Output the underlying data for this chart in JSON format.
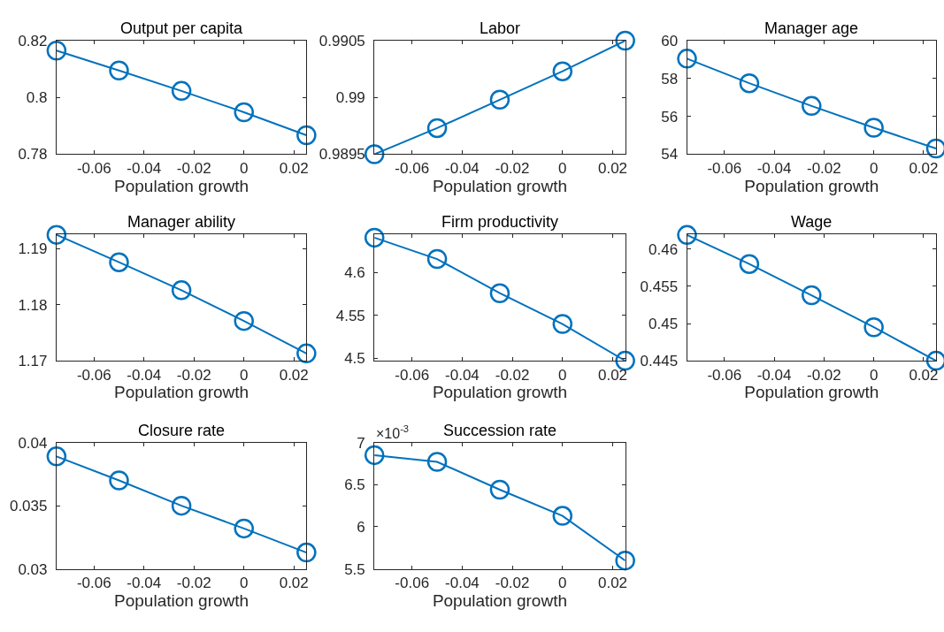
{
  "chart_data": [
    {
      "type": "line",
      "title": "Output per capita",
      "xlabel": "Population growth",
      "x": [
        -0.075,
        -0.05,
        -0.025,
        0,
        0.025
      ],
      "values": [
        0.8165,
        0.8095,
        0.8023,
        0.7948,
        0.7867
      ],
      "color": "#0072bd",
      "marker": "circle",
      "line_style": "solid",
      "xlim": [
        -0.075,
        0.025
      ],
      "xticks": [
        -0.06,
        -0.04,
        -0.02,
        0,
        0.02
      ],
      "ylim": [
        0.78,
        0.82
      ],
      "yticks": [
        0.78,
        0.8,
        0.82
      ]
    },
    {
      "type": "line",
      "title": "Labor",
      "xlabel": "Population growth",
      "x": [
        -0.075,
        -0.05,
        -0.025,
        0,
        0.025
      ],
      "values": [
        0.9895,
        0.98973,
        0.98998,
        0.99023,
        0.9905
      ],
      "color": "#0072bd",
      "marker": "circle",
      "line_style": "solid",
      "xlim": [
        -0.075,
        0.025
      ],
      "xticks": [
        -0.06,
        -0.04,
        -0.02,
        0,
        0.02
      ],
      "ylim": [
        0.9895,
        0.9905
      ],
      "yticks": [
        0.9895,
        0.99,
        0.9905
      ]
    },
    {
      "type": "line",
      "title": "Manager age",
      "xlabel": "Population growth",
      "x": [
        -0.075,
        -0.05,
        -0.025,
        0,
        0.025
      ],
      "values": [
        59.05,
        57.75,
        56.55,
        55.4,
        54.3
      ],
      "color": "#0072bd",
      "marker": "circle",
      "line_style": "solid",
      "xlim": [
        -0.075,
        0.025
      ],
      "xticks": [
        -0.06,
        -0.04,
        -0.02,
        0,
        0.02
      ],
      "ylim": [
        54,
        60
      ],
      "yticks": [
        54,
        56,
        58,
        60
      ]
    },
    {
      "type": "line",
      "title": "Manager ability",
      "xlabel": "Population growth",
      "x": [
        -0.075,
        -0.05,
        -0.025,
        0,
        0.025
      ],
      "values": [
        1.1925,
        1.1876,
        1.1826,
        1.1771,
        1.1713
      ],
      "color": "#0072bd",
      "marker": "circle",
      "line_style": "solid",
      "xlim": [
        -0.075,
        0.025
      ],
      "xticks": [
        -0.06,
        -0.04,
        -0.02,
        0,
        0.02
      ],
      "ylim": [
        1.17,
        1.1926
      ],
      "yticks": [
        1.17,
        1.18,
        1.19
      ]
    },
    {
      "type": "line",
      "title": "Firm productivity",
      "xlabel": "Population growth",
      "x": [
        -0.075,
        -0.05,
        -0.025,
        0,
        0.025
      ],
      "values": [
        4.641,
        4.616,
        4.576,
        4.54,
        4.497
      ],
      "color": "#0072bd",
      "marker": "circle",
      "line_style": "solid",
      "xlim": [
        -0.075,
        0.025
      ],
      "xticks": [
        -0.06,
        -0.04,
        -0.02,
        0,
        0.02
      ],
      "ylim": [
        4.497,
        4.645
      ],
      "yticks": [
        4.5,
        4.55,
        4.6
      ]
    },
    {
      "type": "line",
      "title": "Wage",
      "xlabel": "Population growth",
      "x": [
        -0.075,
        -0.05,
        -0.025,
        0,
        0.025
      ],
      "values": [
        0.4619,
        0.458,
        0.4538,
        0.4495,
        0.445
      ],
      "color": "#0072bd",
      "marker": "circle",
      "line_style": "solid",
      "xlim": [
        -0.075,
        0.025
      ],
      "xticks": [
        -0.06,
        -0.04,
        -0.02,
        0,
        0.02
      ],
      "ylim": [
        0.445,
        0.462
      ],
      "yticks": [
        0.445,
        0.45,
        0.455,
        0.46
      ]
    },
    {
      "type": "line",
      "title": "Closure rate",
      "xlabel": "Population growth",
      "x": [
        -0.075,
        -0.05,
        -0.025,
        0,
        0.025
      ],
      "values": [
        0.0389,
        0.037,
        0.035,
        0.0332,
        0.0313
      ],
      "color": "#0072bd",
      "marker": "circle",
      "line_style": "solid",
      "xlim": [
        -0.075,
        0.025
      ],
      "xticks": [
        -0.06,
        -0.04,
        -0.02,
        0,
        0.02
      ],
      "ylim": [
        0.03,
        0.04
      ],
      "yticks": [
        0.03,
        0.035,
        0.04
      ]
    },
    {
      "type": "line",
      "title": "Succession rate",
      "xlabel": "Population growth",
      "annotations": [
        "×10$^{-3}$"
      ],
      "x": [
        -0.075,
        -0.05,
        -0.025,
        0,
        0.025
      ],
      "values": [
        6.85,
        6.77,
        6.44,
        6.13,
        5.6
      ],
      "color": "#0072bd",
      "marker": "circle",
      "line_style": "solid",
      "xlim": [
        -0.075,
        0.025
      ],
      "xticks": [
        -0.06,
        -0.04,
        -0.02,
        0,
        0.02
      ],
      "ylim": [
        5.5,
        7
      ],
      "yticks": [
        5.5,
        6,
        6.5,
        7
      ]
    }
  ]
}
